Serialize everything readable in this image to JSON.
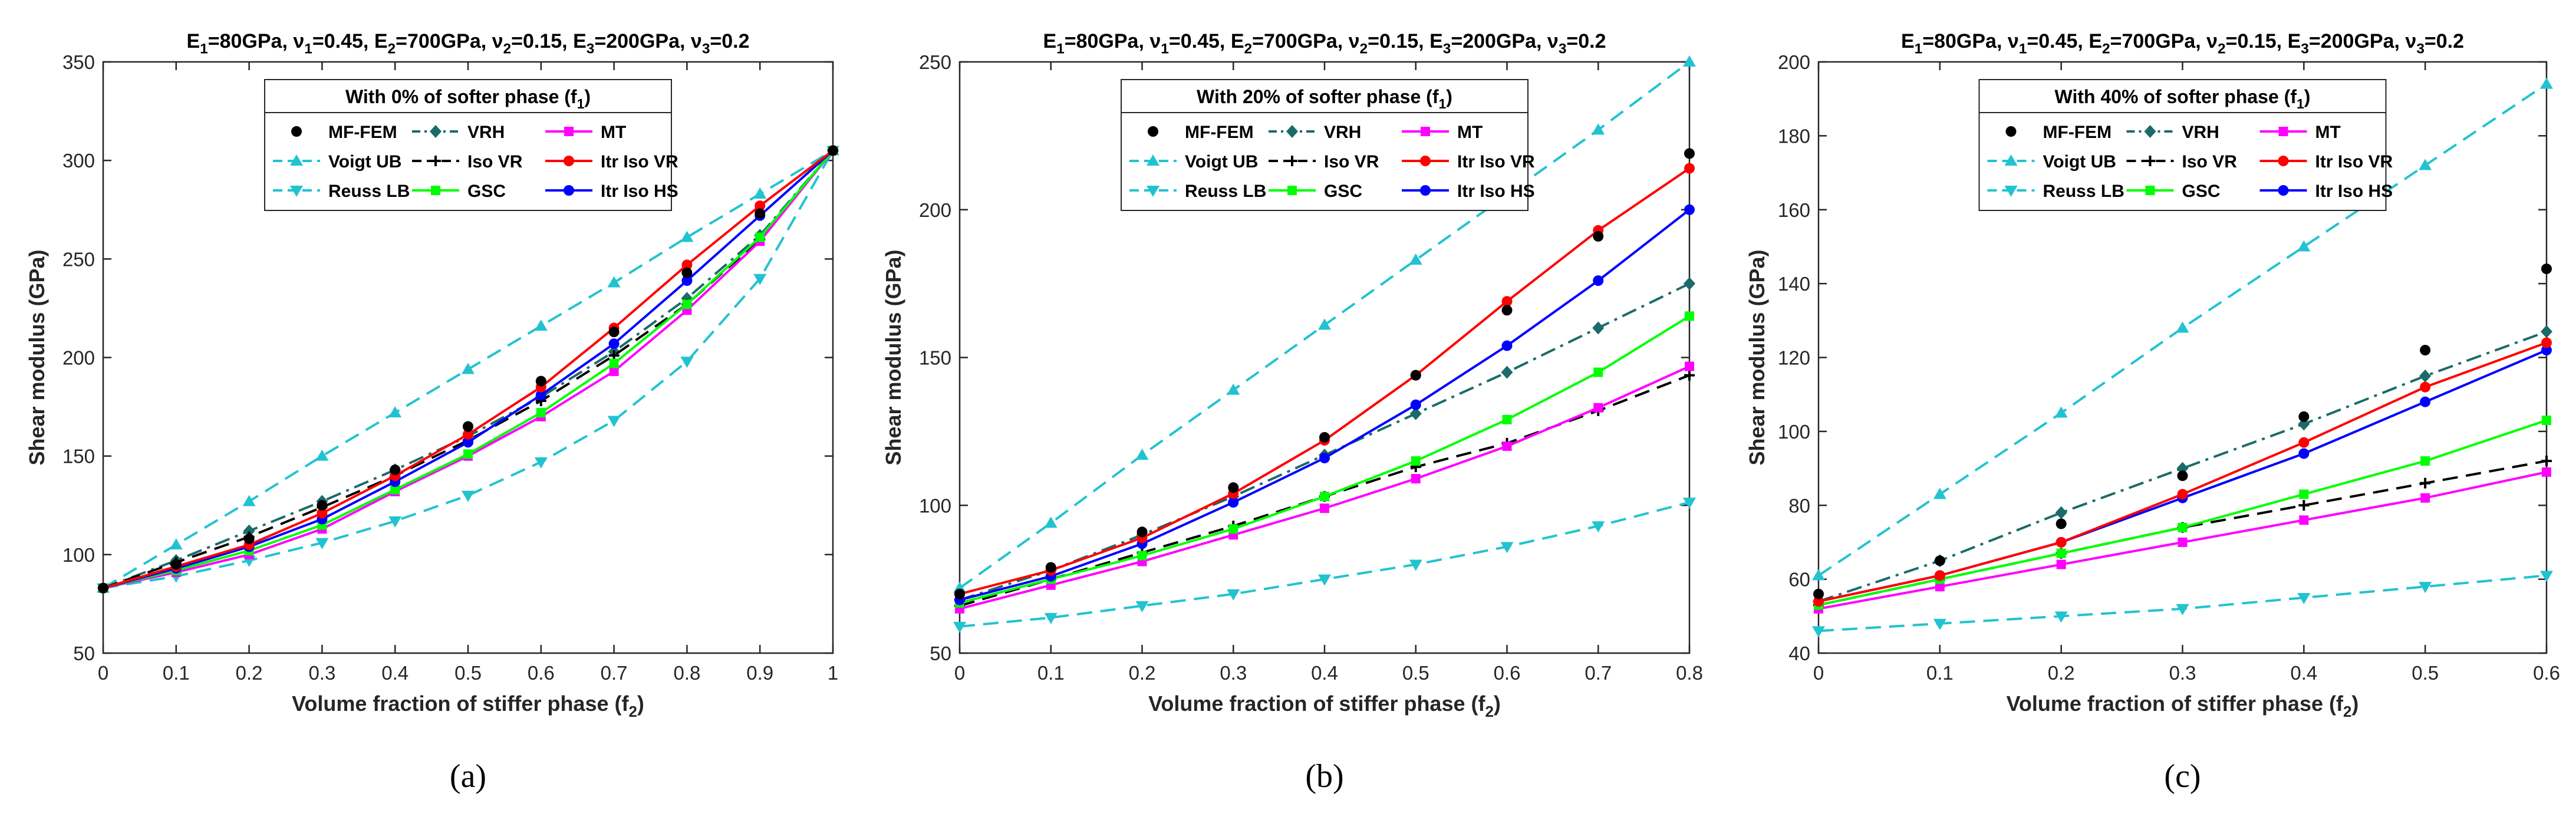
{
  "chart_data": [
    {
      "type": "line",
      "panel_label": "(a)",
      "title": "E1=80GPa, ν1=0.45,  E2=700GPa, ν2=0.15,  E3=200GPa, ν3=0.2",
      "title_parts": [
        {
          "text": "E",
          "sub": false
        },
        {
          "text": "1",
          "sub": true
        },
        {
          "text": "=80GPa, ",
          "sub": false
        },
        {
          "text": "ν",
          "sub": false
        },
        {
          "text": "1",
          "sub": true
        },
        {
          "text": "=0.45,  E",
          "sub": false
        },
        {
          "text": "2",
          "sub": true
        },
        {
          "text": "=700GPa, ",
          "sub": false
        },
        {
          "text": "ν",
          "sub": false
        },
        {
          "text": "2",
          "sub": true
        },
        {
          "text": "=0.15,  E",
          "sub": false
        },
        {
          "text": "3",
          "sub": true
        },
        {
          "text": "=200GPa, ",
          "sub": false
        },
        {
          "text": "ν",
          "sub": false
        },
        {
          "text": "3",
          "sub": true
        },
        {
          "text": "=0.2",
          "sub": false
        }
      ],
      "subtitle": "With 0% of softer phase (f1)",
      "subtitle_parts": [
        {
          "text": "With 0% of softer phase (f",
          "sub": false
        },
        {
          "text": "1",
          "sub": true
        },
        {
          "text": ")",
          "sub": false
        }
      ],
      "xlabel": "Volume fraction of stiffer phase (f2)",
      "xlabel_parts": [
        {
          "text": "Volume fraction of stiffer phase (f",
          "sub": false
        },
        {
          "text": "2",
          "sub": true
        },
        {
          "text": ")",
          "sub": false
        }
      ],
      "ylabel": "Shear modulus (GPa)",
      "xlim": [
        0,
        1
      ],
      "ylim": [
        50,
        350
      ],
      "xticks": [
        0,
        0.1,
        0.2,
        0.3,
        0.4,
        0.5,
        0.6,
        0.7,
        0.8,
        0.9,
        1
      ],
      "xtick_labels": [
        "0",
        "0.1",
        "0.2",
        "0.3",
        "0.4",
        "0.5",
        "0.6",
        "0.7",
        "0.8",
        "0.9",
        "1"
      ],
      "yticks": [
        50,
        100,
        150,
        200,
        250,
        300,
        350
      ],
      "ytick_labels": [
        "50",
        "100",
        "150",
        "200",
        "250",
        "300",
        "350"
      ],
      "x": [
        0,
        0.1,
        0.2,
        0.3,
        0.4,
        0.5,
        0.6,
        0.7,
        0.8,
        0.9,
        1
      ],
      "series": [
        {
          "name": "MF-FEM",
          "values": [
            83,
            95,
            108,
            125,
            143,
            165,
            188,
            213,
            243,
            273,
            305
          ]
        },
        {
          "name": "VRH",
          "values": [
            83,
            97,
            112,
            127,
            143,
            160,
            180,
            203,
            230,
            262,
            305
          ]
        },
        {
          "name": "MT",
          "values": [
            83,
            91,
            100,
            113,
            132,
            150,
            170,
            193,
            224,
            259,
            305
          ]
        },
        {
          "name": "Voigt UB",
          "values": [
            83,
            105,
            127,
            150,
            172,
            194,
            216,
            238,
            261,
            283,
            305
          ]
        },
        {
          "name": "Iso VR",
          "values": [
            83,
            96,
            109,
            124,
            140,
            158,
            178,
            201,
            227,
            260,
            305
          ]
        },
        {
          "name": "Itr Iso VR",
          "values": [
            83,
            94,
            105,
            121,
            140,
            161,
            185,
            215,
            247,
            277,
            305
          ]
        },
        {
          "name": "Reuss LB",
          "values": [
            83,
            89,
            97,
            106,
            117,
            130,
            147,
            168,
            198,
            240,
            305
          ]
        },
        {
          "name": "GSC",
          "values": [
            83,
            92,
            102,
            115,
            133,
            151,
            172,
            197,
            227,
            261,
            305
          ]
        },
        {
          "name": "Itr Iso HS",
          "values": [
            83,
            93,
            104,
            118,
            137,
            157,
            181,
            207,
            239,
            272,
            305
          ]
        }
      ]
    },
    {
      "type": "line",
      "panel_label": "(b)",
      "title": "E1=80GPa, ν1=0.45,  E2=700GPa, ν2=0.15,  E3=200GPa, ν3=0.2",
      "title_parts": [
        {
          "text": "E",
          "sub": false
        },
        {
          "text": "1",
          "sub": true
        },
        {
          "text": "=80GPa, ",
          "sub": false
        },
        {
          "text": "ν",
          "sub": false
        },
        {
          "text": "1",
          "sub": true
        },
        {
          "text": "=0.45,  E",
          "sub": false
        },
        {
          "text": "2",
          "sub": true
        },
        {
          "text": "=700GPa, ",
          "sub": false
        },
        {
          "text": "ν",
          "sub": false
        },
        {
          "text": "2",
          "sub": true
        },
        {
          "text": "=0.15,  E",
          "sub": false
        },
        {
          "text": "3",
          "sub": true
        },
        {
          "text": "=200GPa, ",
          "sub": false
        },
        {
          "text": "ν",
          "sub": false
        },
        {
          "text": "3",
          "sub": true
        },
        {
          "text": "=0.2",
          "sub": false
        }
      ],
      "subtitle": "With 20% of softer phase (f1)",
      "subtitle_parts": [
        {
          "text": "With 20% of softer phase (f",
          "sub": false
        },
        {
          "text": "1",
          "sub": true
        },
        {
          "text": ")",
          "sub": false
        }
      ],
      "xlabel": "Volume fraction of stiffer phase (f2)",
      "xlabel_parts": [
        {
          "text": "Volume fraction of stiffer phase (f",
          "sub": false
        },
        {
          "text": "2",
          "sub": true
        },
        {
          "text": ")",
          "sub": false
        }
      ],
      "ylabel": "Shear modulus (GPa)",
      "xlim": [
        0,
        0.8
      ],
      "ylim": [
        50,
        250
      ],
      "xticks": [
        0,
        0.1,
        0.2,
        0.3,
        0.4,
        0.5,
        0.6,
        0.7,
        0.8
      ],
      "xtick_labels": [
        "0",
        "0.1",
        "0.2",
        "0.3",
        "0.4",
        "0.5",
        "0.6",
        "0.7",
        "0.8"
      ],
      "yticks": [
        50,
        100,
        150,
        200,
        250
      ],
      "ytick_labels": [
        "50",
        "100",
        "150",
        "200",
        "250"
      ],
      "x": [
        0,
        0.1,
        0.2,
        0.3,
        0.4,
        0.5,
        0.6,
        0.7,
        0.8
      ],
      "series": [
        {
          "name": "MF-FEM",
          "values": [
            70,
            79,
            91,
            106,
            123,
            144,
            166,
            191,
            219
          ]
        },
        {
          "name": "VRH",
          "values": [
            68,
            78,
            90,
            103,
            117,
            131,
            145,
            160,
            175
          ]
        },
        {
          "name": "MT",
          "values": [
            65,
            73,
            81,
            90,
            99,
            109,
            120,
            133,
            147
          ]
        },
        {
          "name": "Voigt UB",
          "values": [
            72,
            94,
            117,
            139,
            161,
            183,
            205,
            227,
            250
          ]
        },
        {
          "name": "Iso VR",
          "values": [
            66,
            75,
            84,
            93,
            103,
            113,
            121,
            132,
            144
          ]
        },
        {
          "name": "Itr Iso VR",
          "values": [
            70,
            78,
            89,
            104,
            122,
            144,
            169,
            193,
            214
          ]
        },
        {
          "name": "Reuss LB",
          "values": [
            59,
            62,
            66,
            70,
            75,
            80,
            86,
            93,
            101
          ]
        },
        {
          "name": "GSC",
          "values": [
            67,
            75,
            83,
            92,
            103,
            115,
            129,
            145,
            164
          ]
        },
        {
          "name": "Itr Iso HS",
          "values": [
            68,
            76,
            87,
            101,
            116,
            134,
            154,
            176,
            200
          ]
        }
      ]
    },
    {
      "type": "line",
      "panel_label": "(c)",
      "title": "E1=80GPa, ν1=0.45,  E2=700GPa, ν2=0.15,  E3=200GPa, ν3=0.2",
      "title_parts": [
        {
          "text": "E",
          "sub": false
        },
        {
          "text": "1",
          "sub": true
        },
        {
          "text": "=80GPa, ",
          "sub": false
        },
        {
          "text": "ν",
          "sub": false
        },
        {
          "text": "1",
          "sub": true
        },
        {
          "text": "=0.45,  E",
          "sub": false
        },
        {
          "text": "2",
          "sub": true
        },
        {
          "text": "=700GPa, ",
          "sub": false
        },
        {
          "text": "ν",
          "sub": false
        },
        {
          "text": "2",
          "sub": true
        },
        {
          "text": "=0.15,  E",
          "sub": false
        },
        {
          "text": "3",
          "sub": true
        },
        {
          "text": "=200GPa, ",
          "sub": false
        },
        {
          "text": "ν",
          "sub": false
        },
        {
          "text": "3",
          "sub": true
        },
        {
          "text": "=0.2",
          "sub": false
        }
      ],
      "subtitle": "With 40% of softer phase (f1)",
      "subtitle_parts": [
        {
          "text": "With 40% of softer phase (f",
          "sub": false
        },
        {
          "text": "1",
          "sub": true
        },
        {
          "text": ")",
          "sub": false
        }
      ],
      "xlabel": "Volume fraction of stiffer phase (f2)",
      "xlabel_parts": [
        {
          "text": "Volume fraction of stiffer phase (f",
          "sub": false
        },
        {
          "text": "2",
          "sub": true
        },
        {
          "text": ")",
          "sub": false
        }
      ],
      "ylabel": "Shear modulus (GPa)",
      "xlim": [
        0,
        0.6
      ],
      "ylim": [
        40,
        200
      ],
      "xticks": [
        0,
        0.1,
        0.2,
        0.3,
        0.4,
        0.5,
        0.6
      ],
      "xtick_labels": [
        "0",
        "0.1",
        "0.2",
        "0.3",
        "0.4",
        "0.5",
        "0.6"
      ],
      "yticks": [
        40,
        60,
        80,
        100,
        120,
        140,
        160,
        180,
        200
      ],
      "ytick_labels": [
        "40",
        "60",
        "80",
        "100",
        "120",
        "140",
        "160",
        "180",
        "200"
      ],
      "x": [
        0,
        0.1,
        0.2,
        0.3,
        0.4,
        0.5,
        0.6
      ],
      "series": [
        {
          "name": "MF-FEM",
          "values": [
            56,
            65,
            75,
            88,
            104,
            122,
            144
          ]
        },
        {
          "name": "VRH",
          "values": [
            54,
            65,
            78,
            90,
            102,
            115,
            127
          ]
        },
        {
          "name": "MT",
          "values": [
            52,
            58,
            64,
            70,
            76,
            82,
            89
          ]
        },
        {
          "name": "Voigt UB",
          "values": [
            61,
            83,
            105,
            128,
            150,
            172,
            194
          ]
        },
        {
          "name": "Iso VR",
          "values": [
            53,
            60,
            67,
            74,
            80,
            86,
            92
          ]
        },
        {
          "name": "Itr Iso VR",
          "values": [
            54,
            61,
            70,
            83,
            97,
            112,
            124
          ]
        },
        {
          "name": "Reuss LB",
          "values": [
            46,
            48,
            50,
            52,
            55,
            58,
            61
          ]
        },
        {
          "name": "GSC",
          "values": [
            53,
            60,
            67,
            74,
            83,
            92,
            103
          ]
        },
        {
          "name": "Itr Iso HS",
          "values": [
            54,
            61,
            70,
            82,
            94,
            108,
            122
          ]
        }
      ]
    }
  ],
  "series_styles": {
    "MF-FEM": {
      "color": "#000000",
      "dash": "none",
      "marker": "dot"
    },
    "VRH": {
      "color": "#1a6b69",
      "dash": "dashdot",
      "marker": "diamond"
    },
    "MT": {
      "color": "#ff00ff",
      "dash": "solid",
      "marker": "square"
    },
    "Voigt UB": {
      "color": "#22c3d0",
      "dash": "dashed",
      "marker": "triangle-up"
    },
    "Iso VR": {
      "color": "#000000",
      "dash": "dashed",
      "marker": "plus"
    },
    "Itr Iso VR": {
      "color": "#ff0000",
      "dash": "solid",
      "marker": "circle"
    },
    "Reuss LB": {
      "color": "#22c3d0",
      "dash": "dashed",
      "marker": "triangle-down"
    },
    "GSC": {
      "color": "#00ff00",
      "dash": "solid",
      "marker": "square"
    },
    "Itr Iso HS": {
      "color": "#0000ff",
      "dash": "solid",
      "marker": "circle"
    }
  }
}
